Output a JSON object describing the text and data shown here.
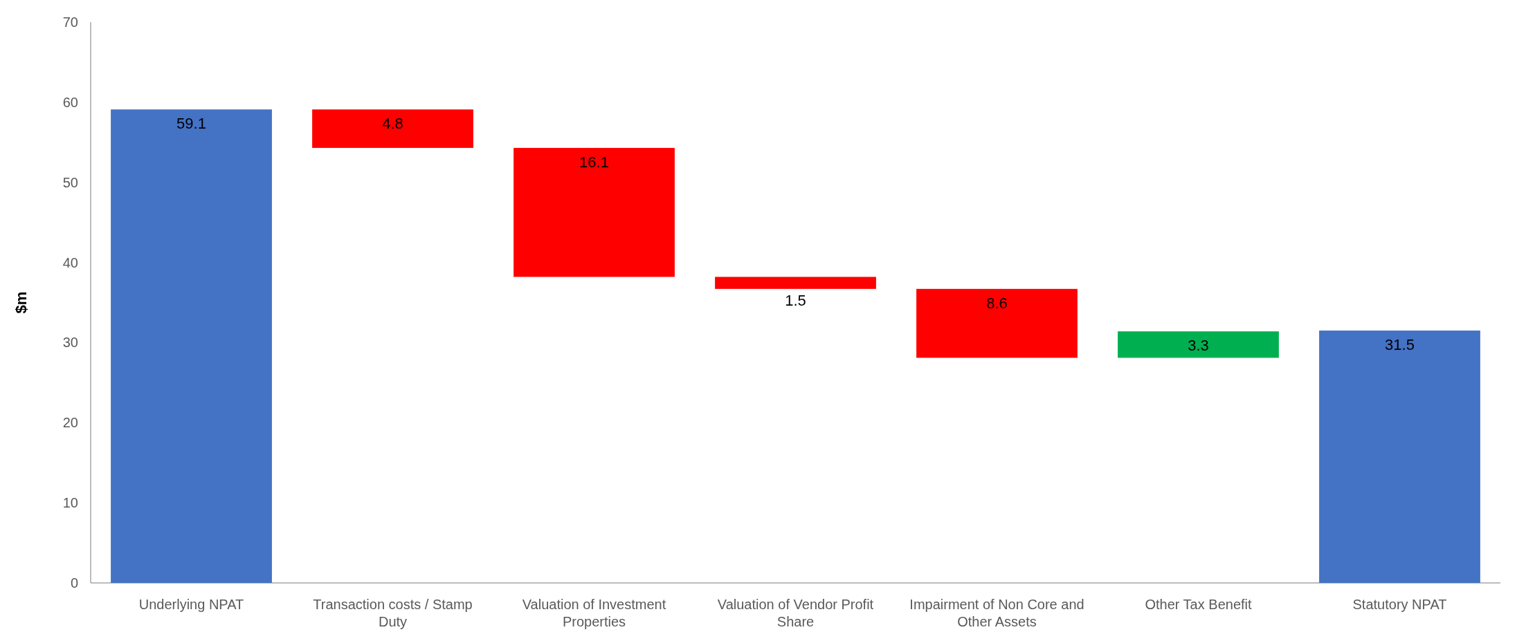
{
  "chart_data": {
    "type": "bar",
    "ylabel": "$m",
    "categories": [
      "Underlying NPAT",
      "Transaction costs / Stamp Duty",
      "Valuation of Investment Properties",
      "Valuation of Vendor Profit Share",
      "Impairment of Non Core and Other Assets",
      "Other Tax Benefit",
      "Statutory NPAT"
    ],
    "values": [
      59.1,
      4.8,
      16.1,
      1.5,
      8.6,
      3.3,
      31.5
    ],
    "base": [
      0,
      54.3,
      38.2,
      36.7,
      28.1,
      28.1,
      0
    ],
    "colors": [
      "#4472c4",
      "#ff0000",
      "#ff0000",
      "#ff0000",
      "#ff0000",
      "#00b050",
      "#4472c4"
    ],
    "ylim": [
      0,
      70
    ],
    "yticks": [
      0,
      10,
      20,
      30,
      40,
      50,
      60,
      70
    ],
    "data_labels": true
  }
}
